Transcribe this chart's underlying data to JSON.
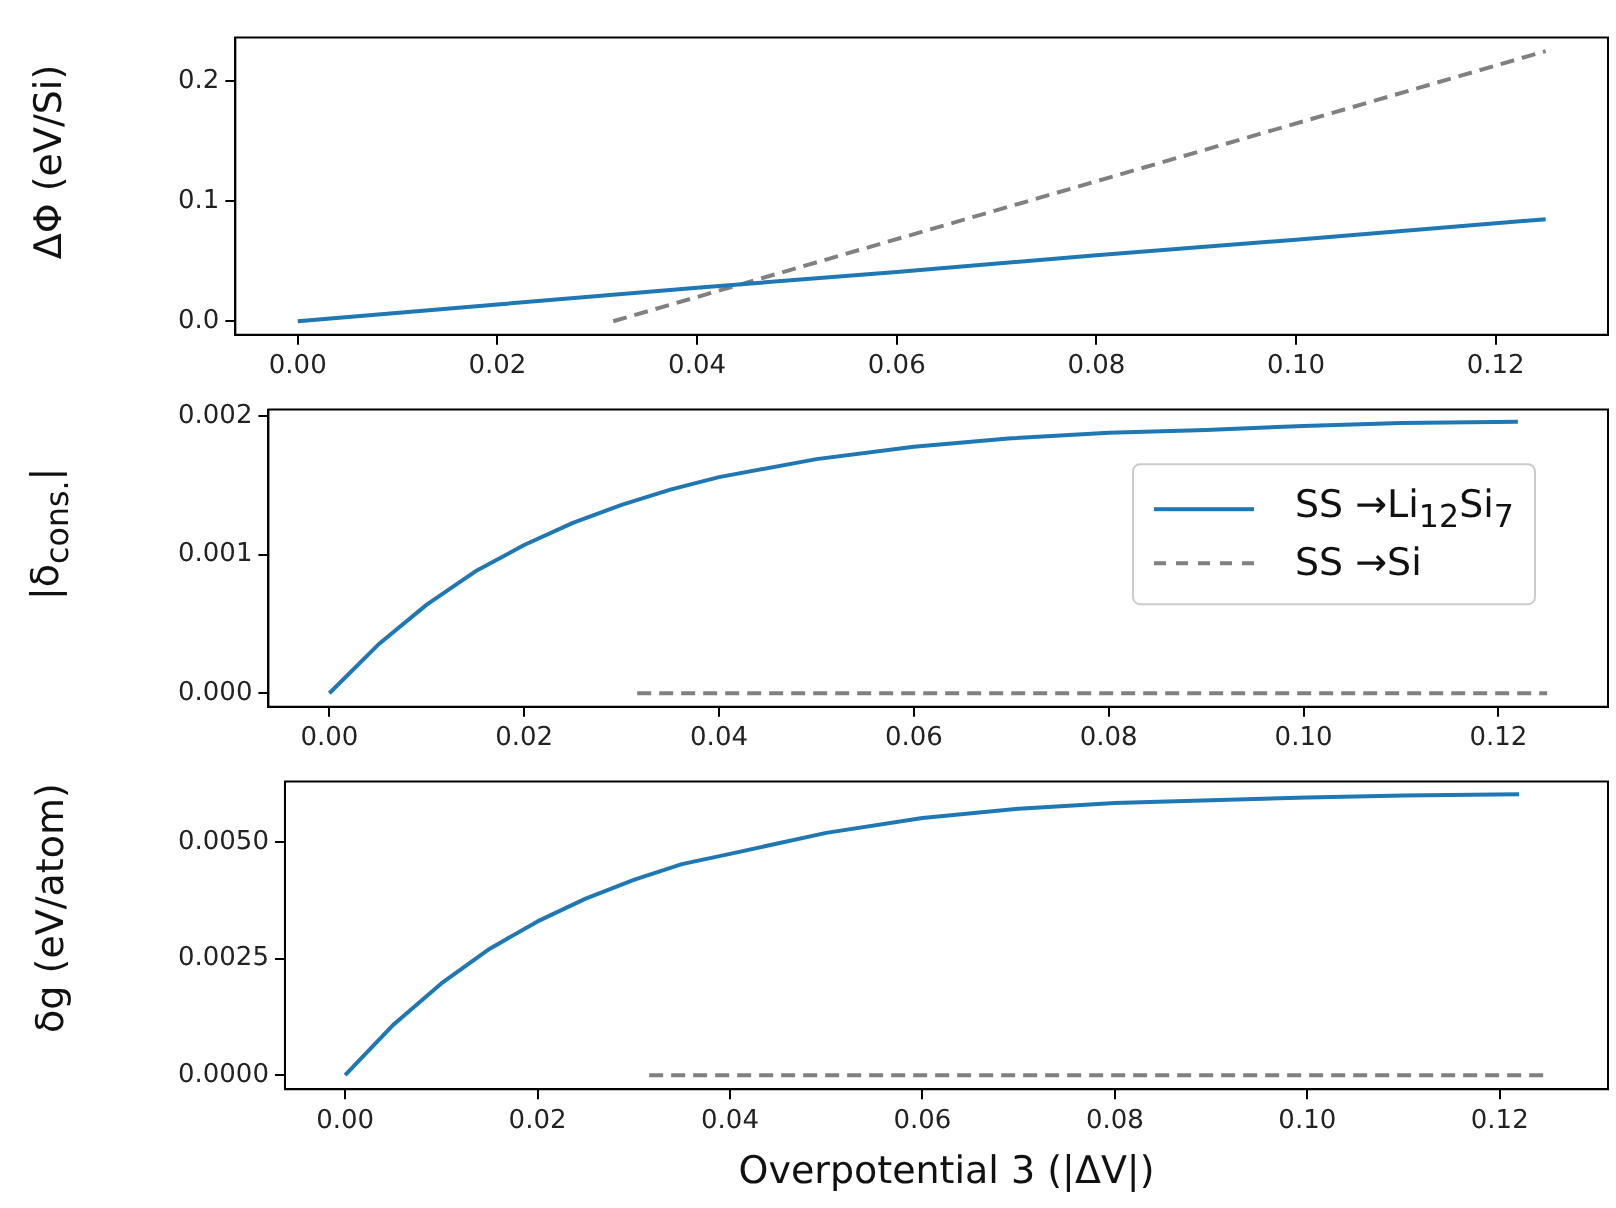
{
  "chart_data": [
    {
      "type": "line",
      "ylabel": "ΔΦ (eV/Si)",
      "xlim": [
        -0.00625,
        0.13125
      ],
      "ylim": [
        -0.01125,
        0.23625
      ],
      "xticks": [
        {
          "value": 0,
          "label": "0.00"
        },
        {
          "value": 0.02,
          "label": "0.02"
        },
        {
          "value": 0.04,
          "label": "0.04"
        },
        {
          "value": 0.06,
          "label": "0.06"
        },
        {
          "value": 0.08,
          "label": "0.08"
        },
        {
          "value": 0.1,
          "label": "0.10"
        },
        {
          "value": 0.12,
          "label": "0.12"
        }
      ],
      "yticks": [
        {
          "value": 0,
          "label": "0.0"
        },
        {
          "value": 0.1,
          "label": "0.1"
        },
        {
          "value": 0.2,
          "label": "0.2"
        }
      ],
      "series": [
        {
          "color": "#1f77b4",
          "line_style": "solid",
          "x": [
            0,
            0.02,
            0.04,
            0.06,
            0.08,
            0.1,
            0.125
          ],
          "values": [
            0,
            0.014,
            0.028,
            0.041,
            0.055,
            0.068,
            0.085
          ]
        },
        {
          "color": "#808080",
          "line_style": "dashed",
          "x": [
            0.0316,
            0.125
          ],
          "values": [
            0,
            0.225
          ]
        }
      ]
    },
    {
      "type": "line",
      "ylabel": "|δ$_{cons.}$|",
      "legend": "right",
      "xlim": [
        -0.00625,
        0.13125
      ],
      "ylim": [
        -9.75e-05,
        0.0020475
      ],
      "xticks": [
        {
          "value": 0,
          "label": "0.00"
        },
        {
          "value": 0.02,
          "label": "0.02"
        },
        {
          "value": 0.04,
          "label": "0.04"
        },
        {
          "value": 0.06,
          "label": "0.06"
        },
        {
          "value": 0.08,
          "label": "0.08"
        },
        {
          "value": 0.1,
          "label": "0.10"
        },
        {
          "value": 0.12,
          "label": "0.12"
        }
      ],
      "yticks": [
        {
          "value": 0,
          "label": "0.000"
        },
        {
          "value": 0.001,
          "label": "0.001"
        },
        {
          "value": 0.002,
          "label": "0.002"
        }
      ],
      "series": [
        {
          "name": "SS →Li$_{12}$Si$_{7}$",
          "color": "#1f77b4",
          "line_style": "solid",
          "x": [
            0,
            0.005,
            0.01,
            0.015,
            0.02,
            0.025,
            0.03,
            0.035,
            0.04,
            0.05,
            0.06,
            0.07,
            0.08,
            0.09,
            0.1,
            0.11,
            0.122
          ],
          "values": [
            0,
            0.00035,
            0.00064,
            0.00088,
            0.00107,
            0.00123,
            0.00136,
            0.00147,
            0.00156,
            0.00169,
            0.00178,
            0.00184,
            0.00188,
            0.0019,
            0.00193,
            0.00195,
            0.00196
          ]
        },
        {
          "name": "SS →Si",
          "color": "#808080",
          "line_style": "dashed",
          "x": [
            0.0316,
            0.125
          ],
          "values": [
            0,
            0
          ]
        }
      ]
    },
    {
      "type": "line",
      "xlabel": "Overpotential 3 (|ΔV|)",
      "ylabel": "δg (eV/atom)",
      "xlim": [
        -0.00625,
        0.13125
      ],
      "ylim": [
        -0.0003,
        0.0063
      ],
      "xticks": [
        {
          "value": 0,
          "label": "0.00"
        },
        {
          "value": 0.02,
          "label": "0.02"
        },
        {
          "value": 0.04,
          "label": "0.04"
        },
        {
          "value": 0.06,
          "label": "0.06"
        },
        {
          "value": 0.08,
          "label": "0.08"
        },
        {
          "value": 0.1,
          "label": "0.10"
        },
        {
          "value": 0.12,
          "label": "0.12"
        }
      ],
      "yticks": [
        {
          "value": 0,
          "label": "0.0000"
        },
        {
          "value": 0.0025,
          "label": "0.0025"
        },
        {
          "value": 0.005,
          "label": "0.0050"
        }
      ],
      "series": [
        {
          "color": "#1f77b4",
          "line_style": "solid",
          "x": [
            0,
            0.005,
            0.01,
            0.015,
            0.02,
            0.025,
            0.03,
            0.035,
            0.04,
            0.05,
            0.06,
            0.07,
            0.08,
            0.09,
            0.1,
            0.11,
            0.122
          ],
          "values": [
            0,
            0.00108,
            0.00197,
            0.00271,
            0.0033,
            0.00379,
            0.00419,
            0.00453,
            0.00475,
            0.0052,
            0.00552,
            0.00572,
            0.00584,
            0.0059,
            0.00596,
            0.006,
            0.00603
          ]
        },
        {
          "color": "#808080",
          "line_style": "dashed",
          "x": [
            0.0316,
            0.125
          ],
          "values": [
            0,
            0
          ]
        }
      ]
    }
  ]
}
